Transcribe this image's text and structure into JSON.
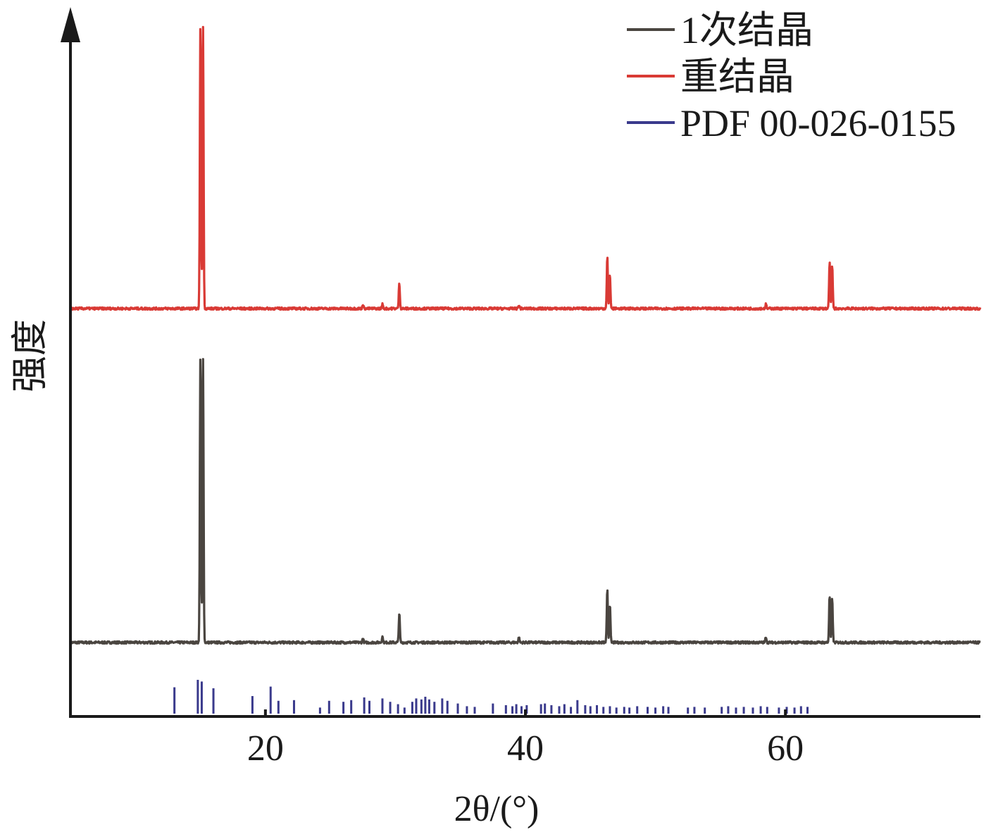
{
  "chart_data": {
    "type": "line",
    "title": "",
    "xlabel": "2θ/(°)",
    "ylabel": "强度",
    "xlim": [
      5,
      75
    ],
    "x_ticks": [
      20,
      40,
      60
    ],
    "y_ticks": [],
    "grid": false,
    "legend_position": "top-right",
    "x_axis_arrow": false,
    "y_axis_arrow": true,
    "series": [
      {
        "name": "1次结晶",
        "color": "#4a4540",
        "kind": "profile",
        "relative_baseline": 0.0,
        "baseline_noise": 0.008,
        "peaks": [
          {
            "x": 15.0,
            "intensity": 1.0
          },
          {
            "x": 15.2,
            "intensity": 0.97
          },
          {
            "x": 27.5,
            "intensity": 0.015
          },
          {
            "x": 29.0,
            "intensity": 0.02
          },
          {
            "x": 30.3,
            "intensity": 0.1
          },
          {
            "x": 39.5,
            "intensity": 0.018
          },
          {
            "x": 46.3,
            "intensity": 0.18
          },
          {
            "x": 46.5,
            "intensity": 0.13
          },
          {
            "x": 58.5,
            "intensity": 0.02
          },
          {
            "x": 63.4,
            "intensity": 0.16
          },
          {
            "x": 63.6,
            "intensity": 0.15
          }
        ]
      },
      {
        "name": "重结晶",
        "color": "#d93a35",
        "kind": "profile",
        "relative_baseline": 1.0,
        "baseline_noise": 0.008,
        "peaks": [
          {
            "x": 15.0,
            "intensity": 1.0
          },
          {
            "x": 15.2,
            "intensity": 0.98
          },
          {
            "x": 27.5,
            "intensity": 0.015
          },
          {
            "x": 29.0,
            "intensity": 0.015
          },
          {
            "x": 30.3,
            "intensity": 0.09
          },
          {
            "x": 39.5,
            "intensity": 0.012
          },
          {
            "x": 46.3,
            "intensity": 0.18
          },
          {
            "x": 46.5,
            "intensity": 0.12
          },
          {
            "x": 58.5,
            "intensity": 0.015
          },
          {
            "x": 63.4,
            "intensity": 0.16
          },
          {
            "x": 63.6,
            "intensity": 0.15
          }
        ]
      },
      {
        "name": "PDF 00-026-0155",
        "color": "#3a3a8c",
        "kind": "reference_sticks",
        "x": [
          13.0,
          14.8,
          15.1,
          16.0,
          19.0,
          20.4,
          21.0,
          22.2,
          24.2,
          24.9,
          26.0,
          26.6,
          27.6,
          28.0,
          29.0,
          29.6,
          30.2,
          30.7,
          31.3,
          31.6,
          32.0,
          32.3,
          32.6,
          33.0,
          33.6,
          34.0,
          34.8,
          35.5,
          36.1,
          37.5,
          38.5,
          39.0,
          39.3,
          39.7,
          40.1,
          41.2,
          41.5,
          42.0,
          42.6,
          43.0,
          43.5,
          44.0,
          44.6,
          45.0,
          45.5,
          46.0,
          46.5,
          47.0,
          47.6,
          48.0,
          48.6,
          49.4,
          50.0,
          50.6,
          51.0,
          52.5,
          53.0,
          53.8,
          55.1,
          55.6,
          56.2,
          56.8,
          57.5,
          58.1,
          58.6,
          59.5,
          60.1,
          60.7,
          61.2,
          61.7
        ],
        "intensity": [
          0.78,
          1.0,
          0.95,
          0.75,
          0.52,
          0.8,
          0.38,
          0.4,
          0.18,
          0.38,
          0.35,
          0.4,
          0.48,
          0.38,
          0.45,
          0.35,
          0.28,
          0.18,
          0.35,
          0.45,
          0.42,
          0.5,
          0.42,
          0.35,
          0.45,
          0.38,
          0.3,
          0.22,
          0.2,
          0.3,
          0.25,
          0.22,
          0.28,
          0.22,
          0.25,
          0.28,
          0.3,
          0.25,
          0.22,
          0.28,
          0.2,
          0.4,
          0.25,
          0.22,
          0.25,
          0.2,
          0.22,
          0.18,
          0.2,
          0.18,
          0.22,
          0.2,
          0.18,
          0.22,
          0.2,
          0.18,
          0.2,
          0.18,
          0.2,
          0.22,
          0.18,
          0.2,
          0.18,
          0.22,
          0.2,
          0.18,
          0.2,
          0.18,
          0.22,
          0.2
        ]
      }
    ]
  }
}
